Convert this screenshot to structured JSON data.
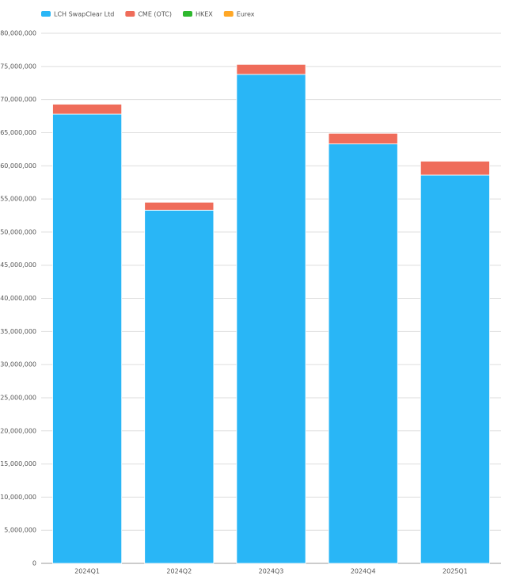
{
  "chart_data": {
    "type": "stacked-bar",
    "categories": [
      "2024Q1",
      "2024Q2",
      "2024Q3",
      "2024Q4",
      "2025Q1"
    ],
    "series": [
      {
        "name": "LCH SwapClear Ltd",
        "color": "#29b6f6",
        "values": [
          67800000,
          53300000,
          73800000,
          63300000,
          58600000
        ]
      },
      {
        "name": "CME (OTC)",
        "color": "#ef6c5a",
        "values": [
          1500000,
          1200000,
          1500000,
          1600000,
          2100000
        ]
      },
      {
        "name": "HKEX",
        "color": "#2eb82e",
        "values": [
          0,
          0,
          0,
          0,
          0
        ]
      },
      {
        "name": "Eurex",
        "color": "#ffa726",
        "values": [
          0,
          0,
          0,
          0,
          0
        ]
      }
    ],
    "ylim": [
      0,
      80000000
    ],
    "yticks": [
      0,
      {
        "value": 5000000,
        "label": "5,000,000"
      },
      {
        "value": 10000000,
        "label": "10,000,000"
      },
      {
        "value": 15000000,
        "label": "15,000,000"
      },
      {
        "value": 20000000,
        "label": "20,000,000"
      },
      {
        "value": 25000000,
        "label": "25,000,000"
      },
      {
        "value": 30000000,
        "label": "30,000,000"
      },
      {
        "value": 35000000,
        "label": "35,000,000"
      },
      {
        "value": 40000000,
        "label": "40,000,000"
      },
      {
        "value": 45000000,
        "label": "45,000,000"
      },
      {
        "value": 50000000,
        "label": "50,000,000"
      },
      {
        "value": 55000000,
        "label": "55,000,000"
      },
      {
        "value": 60000000,
        "label": "60,000,000"
      },
      {
        "value": 65000000,
        "label": "65,000,000"
      },
      {
        "value": 70000000,
        "label": "70,000,000"
      },
      {
        "value": 75000000,
        "label": "75,000,000"
      },
      {
        "value": 80000000,
        "label": "80,000,000"
      }
    ],
    "grid": true,
    "legend": "top"
  }
}
